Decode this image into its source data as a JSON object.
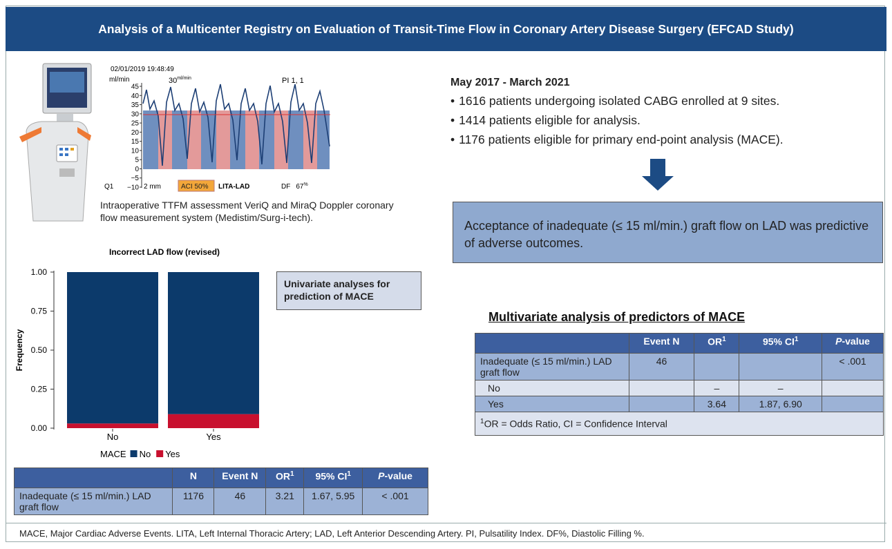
{
  "header": {
    "title": "Analysis of a Multicenter Registry on Evaluation of Transit-Time Flow in Coronary Artery Disease Surgery (EFCAD Study)"
  },
  "device_figure": {
    "timestamp": "02/01/2019 19:48:49",
    "unit": "ml/min",
    "flow": "30",
    "flow_unit": "ml/min",
    "pi": "PI 1, 1",
    "ylim": [
      -10,
      45
    ],
    "yticks": [
      45,
      40,
      35,
      30,
      25,
      20,
      15,
      10,
      5,
      0,
      {
        "value": -5,
        "label": "−5"
      },
      {
        "value": -10,
        "label": "−10"
      }
    ],
    "channel": "Q1",
    "probe": "2 mm",
    "aci": "ACI 50%",
    "vessel": "LITA-LAD",
    "df": "DF",
    "df_value": "67",
    "df_unit": "%",
    "caption": "Intraoperative TTFM assessment VeriQ and MiraQ Doppler coronary flow measurement system (Medistim/Surg-i-tech)."
  },
  "summary": {
    "period": "May 2017 - March 2021",
    "bullets": [
      "1616 patients undergoing isolated CABG enrolled at 9 sites.",
      "1414 patients eligible for analysis.",
      "1176 patients eligible for primary end-point analysis (MACE)."
    ],
    "conclusion": "Acceptance of inadequate (≤ 15 ml/min.) graft flow on LAD was predictive of adverse outcomes."
  },
  "chart_data": {
    "type": "stacked_bar",
    "title": "Incorrect LAD flow (revised)",
    "y_label": "Frequency",
    "categories": [
      "No",
      "Yes"
    ],
    "series": [
      {
        "name": "No",
        "color": "#0c3a6b",
        "values": [
          0.97,
          0.91
        ]
      },
      {
        "name": "Yes",
        "color": "#c8102e",
        "values": [
          0.03,
          0.09
        ]
      }
    ],
    "legend_title": "MACE",
    "ylim": [
      0,
      1
    ],
    "yticks": [
      {
        "value": 0,
        "label": "0.00"
      },
      {
        "value": 0.25,
        "label": "0.25"
      },
      {
        "value": 0.5,
        "label": "0.50"
      },
      {
        "value": 0.75,
        "label": "0.75"
      },
      {
        "value": 1,
        "label": "1.00"
      }
    ]
  },
  "univariate_note": "Univariate analyses for prediction of MACE",
  "univariate_table": {
    "headers": [
      null,
      {
        "text": "N"
      },
      {
        "text": "Event N"
      },
      {
        "text": "OR",
        "sup": "1"
      },
      {
        "text": "95% CI",
        "sup": "1"
      },
      {
        "italic": "P",
        "text": "-value"
      }
    ],
    "rows": [
      [
        "Inadequate (≤ 15 ml/min.) LAD graft flow",
        "1176",
        "46",
        "3.21",
        "1.67, 5.95",
        "< .001"
      ]
    ]
  },
  "multivariate_table": {
    "title": "Multivariate analysis of predictors of MACE",
    "headers": [
      null,
      {
        "text": "Event N"
      },
      {
        "text": "OR",
        "sup": "1"
      },
      {
        "text": "95% CI",
        "sup": "1"
      },
      {
        "italic": "P",
        "text": "-value"
      }
    ],
    "rows": [
      [
        "Inadequate (≤ 15 ml/min.) LAD graft flow",
        "46",
        null,
        null,
        "< .001"
      ],
      [
        "No",
        null,
        "–",
        "–",
        null
      ],
      [
        "Yes",
        null,
        "3.64",
        "1.87, 6.90",
        null
      ]
    ],
    "footnote": {
      "sup": "1",
      "text": "OR = Odds Ratio, CI = Confidence Interval"
    }
  },
  "footer": "MACE, Major Cardiac Adverse Events. LITA, Left Internal Thoracic Artery; LAD, Left Anterior Descending Artery. PI, Pulsatility Index. DF%, Diastolic Filling %."
}
